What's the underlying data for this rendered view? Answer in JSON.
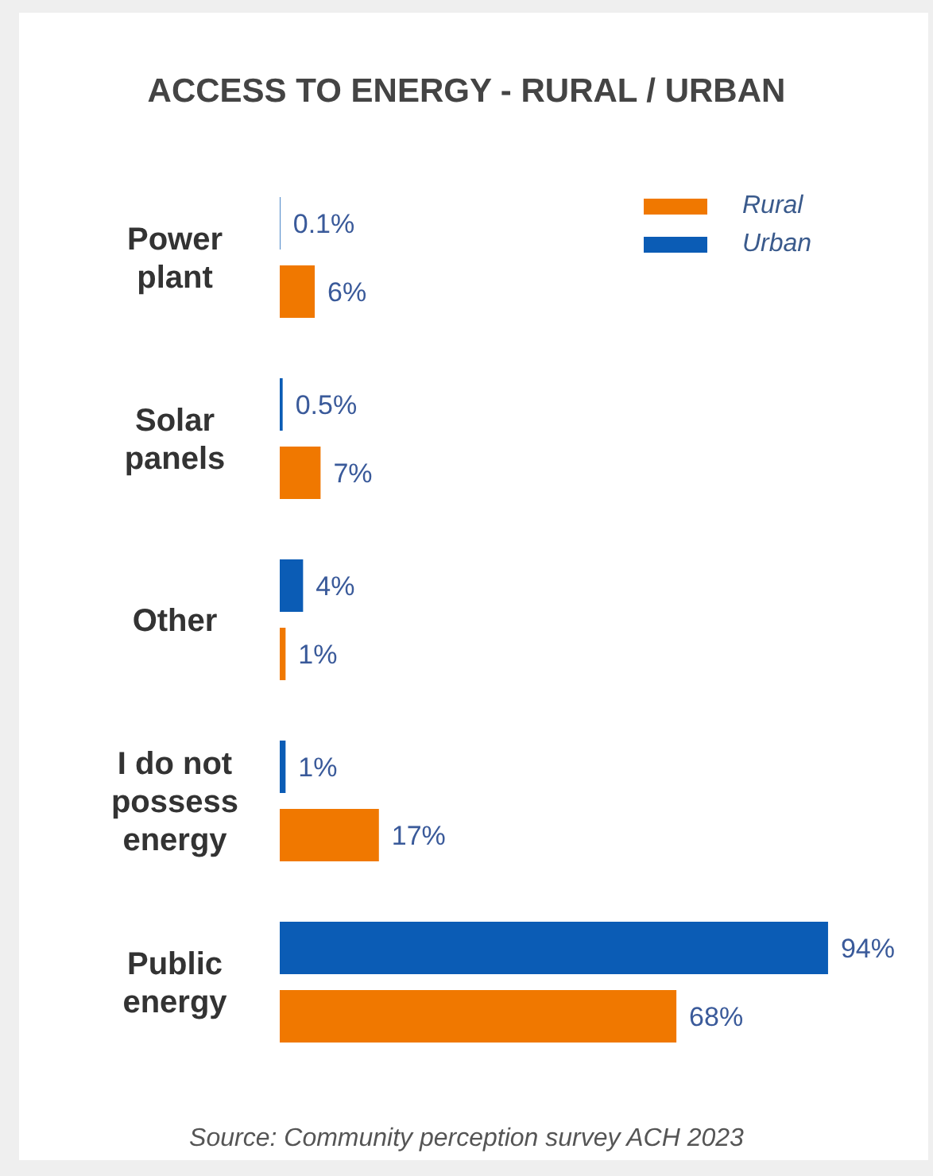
{
  "chart_data": {
    "type": "bar",
    "orientation": "horizontal",
    "title": "ACCESS TO ENERGY - RURAL / URBAN",
    "categories": [
      "Power plant",
      "Solar panels",
      "Other",
      "I do not possess energy",
      "Public energy"
    ],
    "series": [
      {
        "name": "Urban",
        "color": "#0b5cb5",
        "values": [
          0.1,
          0.5,
          4,
          1,
          94
        ],
        "value_labels": [
          "0.1%",
          "0.5%",
          "4%",
          "1%",
          "94%"
        ]
      },
      {
        "name": "Rural",
        "color": "#f07800",
        "values": [
          6,
          7,
          1,
          17,
          68
        ],
        "value_labels": [
          "6%",
          "7%",
          "1%",
          "17%",
          "68%"
        ]
      }
    ],
    "tick_labels": "y",
    "grid": false,
    "legend": "top right",
    "annotations": [
      "Source: Community perception survey ACH 2023"
    ]
  }
}
